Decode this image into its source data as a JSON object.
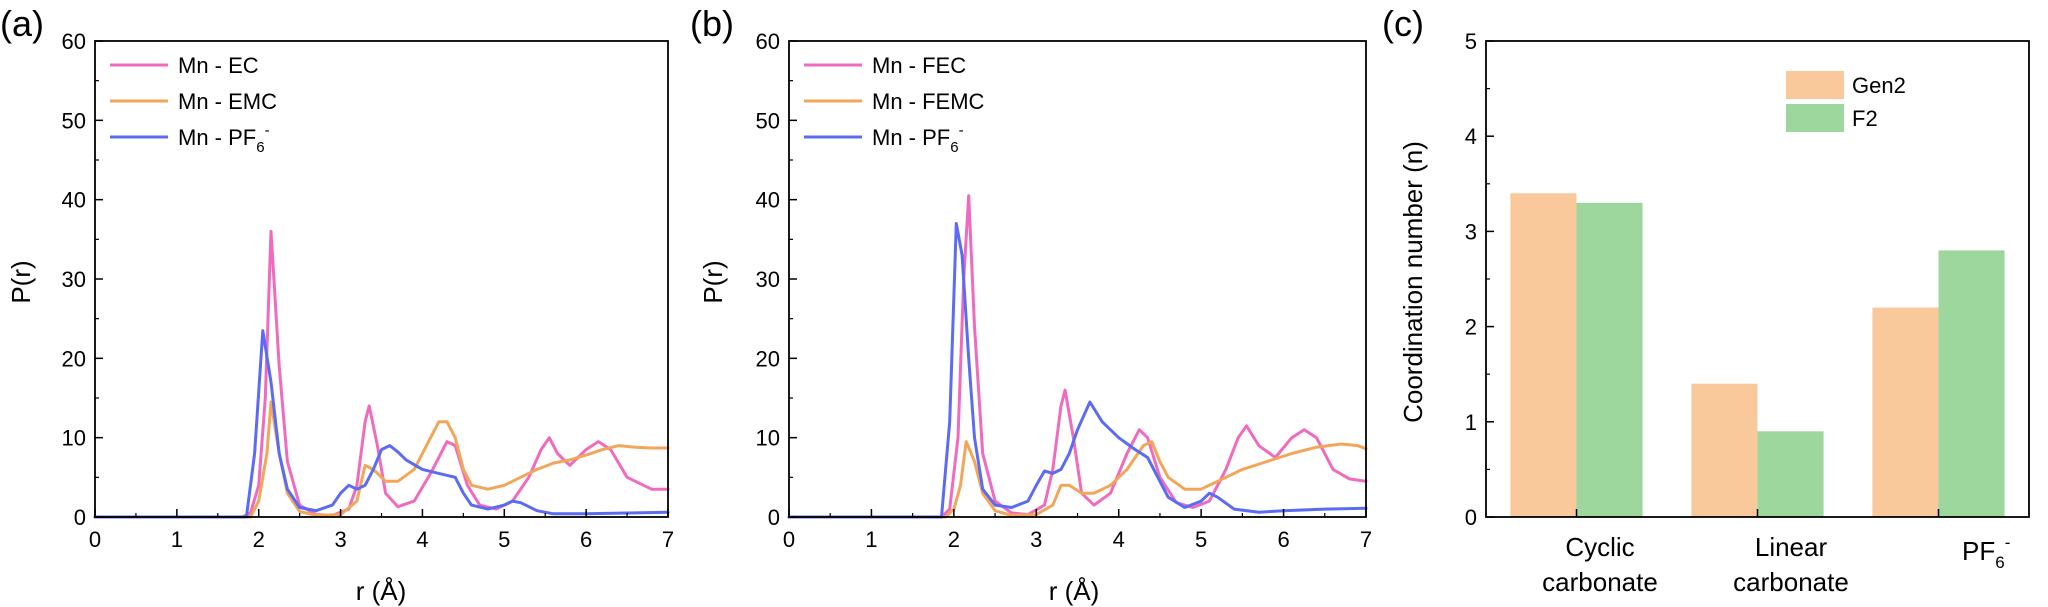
{
  "chart_data": [
    {
      "panel": "(a)",
      "type": "line",
      "xlabel": "r (Å)",
      "ylabel": "P(r)",
      "xlim": [
        0,
        7
      ],
      "ylim": [
        0,
        60
      ],
      "xticks": [
        0,
        1,
        2,
        3,
        4,
        5,
        6,
        7
      ],
      "yticks": [
        0,
        10,
        20,
        30,
        40,
        50,
        60
      ],
      "grid": false,
      "legend_position": "top-left",
      "series": [
        {
          "name": "Mn - EC",
          "color": "#f06bbd",
          "x": [
            0,
            1.8,
            1.9,
            2.0,
            2.08,
            2.15,
            2.25,
            2.35,
            2.5,
            2.7,
            2.9,
            3.1,
            3.2,
            3.3,
            3.35,
            3.45,
            3.55,
            3.7,
            3.9,
            4.1,
            4.3,
            4.4,
            4.55,
            4.7,
            4.9,
            5.1,
            5.3,
            5.45,
            5.55,
            5.65,
            5.8,
            6.0,
            6.15,
            6.3,
            6.5,
            6.8,
            7.0
          ],
          "y": [
            0,
            0,
            0.5,
            4,
            15,
            36,
            19,
            7,
            1.5,
            0.3,
            0.2,
            1,
            4,
            12,
            14,
            9,
            3,
            1.3,
            2,
            5.5,
            9.5,
            9,
            4,
            1.5,
            1,
            2,
            5,
            8.5,
            10,
            8,
            6.5,
            8.5,
            9.5,
            8.5,
            5,
            3.5,
            3.5
          ]
        },
        {
          "name": "Mn - EMC",
          "color": "#f2a65a",
          "x": [
            0,
            1.9,
            2.0,
            2.1,
            2.15,
            2.25,
            2.35,
            2.5,
            2.7,
            3.0,
            3.2,
            3.3,
            3.4,
            3.55,
            3.7,
            3.9,
            4.1,
            4.2,
            4.3,
            4.4,
            4.5,
            4.6,
            4.8,
            5.0,
            5.2,
            5.4,
            5.6,
            5.8,
            6.0,
            6.2,
            6.4,
            6.6,
            6.8,
            7.0
          ],
          "y": [
            0,
            0,
            2,
            8,
            14.5,
            8,
            3,
            0.7,
            0.2,
            0.3,
            2,
            6.5,
            6,
            4.5,
            4.5,
            6,
            10,
            12,
            12,
            10,
            6,
            4,
            3.5,
            4,
            5,
            6,
            6.8,
            7.2,
            7.8,
            8.5,
            9,
            8.8,
            8.7,
            8.7
          ]
        },
        {
          "name": "Mn - PF6-",
          "label_main": "Mn - PF",
          "label_sub": "6",
          "label_sup": "-",
          "color": "#5b6cf2",
          "x": [
            0,
            1.85,
            1.95,
            2.05,
            2.15,
            2.25,
            2.35,
            2.5,
            2.7,
            2.9,
            3.0,
            3.1,
            3.2,
            3.3,
            3.4,
            3.5,
            3.6,
            3.7,
            3.8,
            4.0,
            4.2,
            4.4,
            4.5,
            4.6,
            4.8,
            5.0,
            5.1,
            5.2,
            5.4,
            5.6,
            6.0,
            6.5,
            7.0
          ],
          "y": [
            0,
            0,
            8,
            23.5,
            17,
            8,
            3.5,
            1.2,
            0.8,
            1.5,
            3,
            4,
            3.5,
            4,
            6,
            8.5,
            9,
            8.2,
            7.2,
            6,
            5.5,
            5,
            3,
            1.5,
            1,
            1.5,
            2,
            1.8,
            0.8,
            0.4,
            0.4,
            0.5,
            0.6
          ]
        }
      ]
    },
    {
      "panel": "(b)",
      "type": "line",
      "xlabel": "r (Å)",
      "ylabel": "P(r)",
      "xlim": [
        0,
        7
      ],
      "ylim": [
        0,
        60
      ],
      "xticks": [
        0,
        1,
        2,
        3,
        4,
        5,
        6,
        7
      ],
      "yticks": [
        0,
        10,
        20,
        30,
        40,
        50,
        60
      ],
      "grid": false,
      "legend_position": "top-left",
      "series": [
        {
          "name": "Mn - FEC",
          "color": "#f06bbd",
          "x": [
            0,
            1.85,
            1.95,
            2.05,
            2.12,
            2.18,
            2.25,
            2.35,
            2.5,
            2.7,
            2.9,
            3.1,
            3.2,
            3.3,
            3.35,
            3.45,
            3.55,
            3.7,
            3.9,
            4.1,
            4.25,
            4.35,
            4.5,
            4.7,
            4.9,
            5.1,
            5.3,
            5.45,
            5.55,
            5.7,
            5.9,
            6.1,
            6.25,
            6.4,
            6.6,
            6.8,
            7.0
          ],
          "y": [
            0,
            0,
            1,
            10,
            30,
            40.5,
            24,
            8,
            2,
            0.5,
            0.3,
            1.5,
            6,
            14,
            16,
            10,
            3,
            1.5,
            3,
            8,
            11,
            10,
            5,
            1.8,
            1.2,
            2,
            6,
            10,
            11.5,
            9,
            7.5,
            10,
            11,
            10,
            6,
            4.8,
            4.5
          ]
        },
        {
          "name": "Mn - FEMC",
          "color": "#f2a65a",
          "x": [
            0,
            1.9,
            2.0,
            2.08,
            2.15,
            2.25,
            2.35,
            2.5,
            2.7,
            3.0,
            3.2,
            3.3,
            3.4,
            3.55,
            3.7,
            3.9,
            4.1,
            4.3,
            4.4,
            4.5,
            4.6,
            4.8,
            5.0,
            5.2,
            5.5,
            5.8,
            6.1,
            6.4,
            6.7,
            6.9,
            7.0
          ],
          "y": [
            0,
            0,
            1,
            4,
            9.5,
            7,
            3,
            0.8,
            0.2,
            0.3,
            1.5,
            4,
            4,
            3,
            3,
            4,
            6,
            9,
            9.5,
            7,
            5,
            3.5,
            3.5,
            4.5,
            6,
            7,
            8,
            8.8,
            9.2,
            9,
            8.6
          ]
        },
        {
          "name": "Mn - PF6-",
          "label_main": "Mn - PF",
          "label_sub": "6",
          "label_sup": "-",
          "color": "#5b6cf2",
          "x": [
            0,
            1.85,
            1.95,
            2.03,
            2.1,
            2.18,
            2.25,
            2.35,
            2.5,
            2.7,
            2.9,
            3.0,
            3.1,
            3.2,
            3.3,
            3.4,
            3.5,
            3.65,
            3.8,
            4.0,
            4.2,
            4.35,
            4.5,
            4.6,
            4.8,
            5.0,
            5.1,
            5.2,
            5.4,
            5.7,
            6.0,
            6.5,
            7.0
          ],
          "y": [
            0,
            0,
            12,
            37,
            33,
            20,
            10,
            3.5,
            1.5,
            1.2,
            2,
            4,
            5.8,
            5.5,
            6,
            8,
            11,
            14.5,
            12,
            10,
            8.5,
            7.5,
            4.5,
            2.5,
            1.2,
            2,
            3,
            2.5,
            1,
            0.6,
            0.8,
            1,
            1.1
          ]
        }
      ]
    },
    {
      "panel": "(c)",
      "type": "bar",
      "ylabel": "Coordination number (n)",
      "ylim": [
        0,
        5
      ],
      "yticks": [
        0,
        1,
        2,
        3,
        4,
        5
      ],
      "categories": [
        {
          "lines": [
            "Cyclic",
            "carbonate"
          ]
        },
        {
          "lines": [
            "Linear",
            "carbonate"
          ]
        },
        {
          "main": "PF",
          "sub": "6",
          "sup": "-"
        }
      ],
      "legend_position": "top-right",
      "series": [
        {
          "name": "Gen2",
          "color": "#f9c89b",
          "values": [
            3.4,
            1.4,
            2.2
          ]
        },
        {
          "name": "F2",
          "color": "#9dd79e",
          "values": [
            3.3,
            0.9,
            2.8
          ]
        }
      ]
    }
  ]
}
